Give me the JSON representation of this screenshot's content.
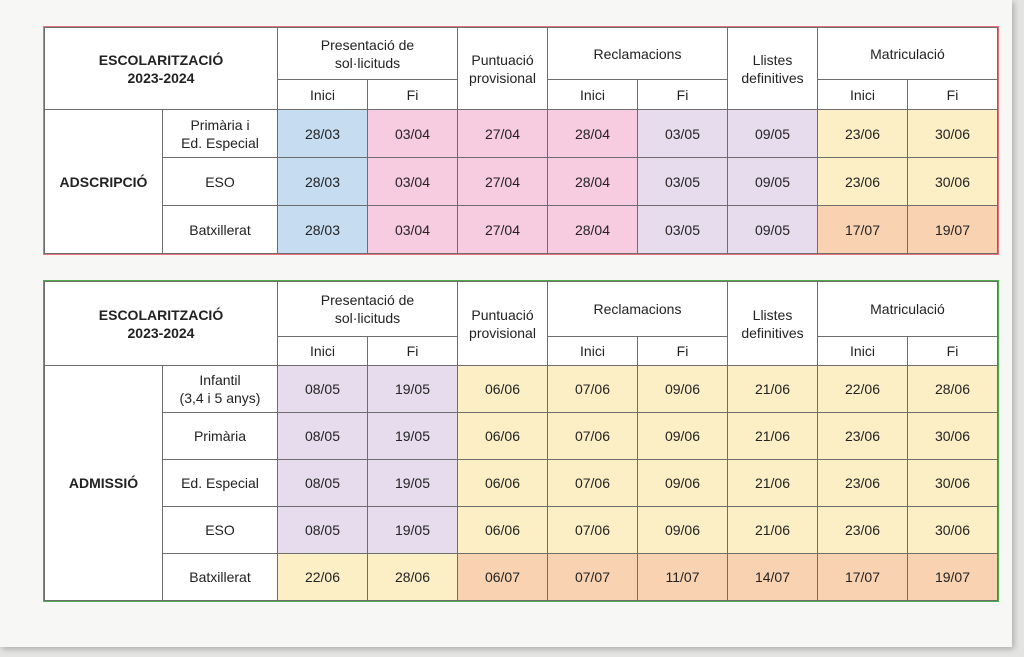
{
  "header": {
    "title_line1": "ESCOLARITZACIÓ",
    "title_line2": "2023-2024",
    "col_presentacio_l1": "Presentació de",
    "col_presentacio_l2": "sol·licituds",
    "col_puntuacio_l1": "Puntuació",
    "col_puntuacio_l2": "provisional",
    "col_reclamacions": "Reclamacions",
    "col_llistes_l1": "Llistes",
    "col_llistes_l2": "definitives",
    "col_matriculacio": "Matriculació",
    "sub_inici": "Inici",
    "sub_fi": "Fi"
  },
  "colors": {
    "blue": "#c6dcf1",
    "pink": "#f7cbe0",
    "lavender": "#e6dcee",
    "yellow": "#fcefc6",
    "orange": "#f9d2b2",
    "adscripcio_accent": "#e8323f",
    "admissio_accent": "#2a9a2a"
  },
  "adscripcio": {
    "label": "ADSCRIPCIÓ",
    "rows": [
      {
        "level_l1": "Primària i",
        "level_l2": "Ed. Especial",
        "values": [
          "28/03",
          "03/04",
          "27/04",
          "28/04",
          "03/05",
          "09/05",
          "23/06",
          "30/06"
        ],
        "colors": [
          "blue",
          "pink",
          "pink",
          "pink",
          "lavender",
          "lavender",
          "yellow",
          "yellow"
        ]
      },
      {
        "level_l1": "ESO",
        "level_l2": "",
        "values": [
          "28/03",
          "03/04",
          "27/04",
          "28/04",
          "03/05",
          "09/05",
          "23/06",
          "30/06"
        ],
        "colors": [
          "blue",
          "pink",
          "pink",
          "pink",
          "lavender",
          "lavender",
          "yellow",
          "yellow"
        ]
      },
      {
        "level_l1": "Batxillerat",
        "level_l2": "",
        "values": [
          "28/03",
          "03/04",
          "27/04",
          "28/04",
          "03/05",
          "09/05",
          "17/07",
          "19/07"
        ],
        "colors": [
          "blue",
          "pink",
          "pink",
          "pink",
          "lavender",
          "lavender",
          "orange",
          "orange"
        ]
      }
    ]
  },
  "admissio": {
    "label": "ADMISSIÓ",
    "rows": [
      {
        "level_l1": "Infantil",
        "level_l2": "(3,4 i 5 anys)",
        "values": [
          "08/05",
          "19/05",
          "06/06",
          "07/06",
          "09/06",
          "21/06",
          "22/06",
          "28/06"
        ],
        "colors": [
          "lavender",
          "lavender",
          "yellow",
          "yellow",
          "yellow",
          "yellow",
          "yellow",
          "yellow"
        ]
      },
      {
        "level_l1": "Primària",
        "level_l2": "",
        "values": [
          "08/05",
          "19/05",
          "06/06",
          "07/06",
          "09/06",
          "21/06",
          "23/06",
          "30/06"
        ],
        "colors": [
          "lavender",
          "lavender",
          "yellow",
          "yellow",
          "yellow",
          "yellow",
          "yellow",
          "yellow"
        ]
      },
      {
        "level_l1": "Ed. Especial",
        "level_l2": "",
        "values": [
          "08/05",
          "19/05",
          "06/06",
          "07/06",
          "09/06",
          "21/06",
          "23/06",
          "30/06"
        ],
        "colors": [
          "lavender",
          "lavender",
          "yellow",
          "yellow",
          "yellow",
          "yellow",
          "yellow",
          "yellow"
        ]
      },
      {
        "level_l1": "ESO",
        "level_l2": "",
        "values": [
          "08/05",
          "19/05",
          "06/06",
          "07/06",
          "09/06",
          "21/06",
          "23/06",
          "30/06"
        ],
        "colors": [
          "lavender",
          "lavender",
          "yellow",
          "yellow",
          "yellow",
          "yellow",
          "yellow",
          "yellow"
        ]
      },
      {
        "level_l1": "Batxillerat",
        "level_l2": "",
        "values": [
          "22/06",
          "28/06",
          "06/07",
          "07/07",
          "11/07",
          "14/07",
          "17/07",
          "19/07"
        ],
        "colors": [
          "yellow",
          "yellow",
          "orange",
          "orange",
          "orange",
          "orange",
          "orange",
          "orange"
        ]
      }
    ]
  }
}
